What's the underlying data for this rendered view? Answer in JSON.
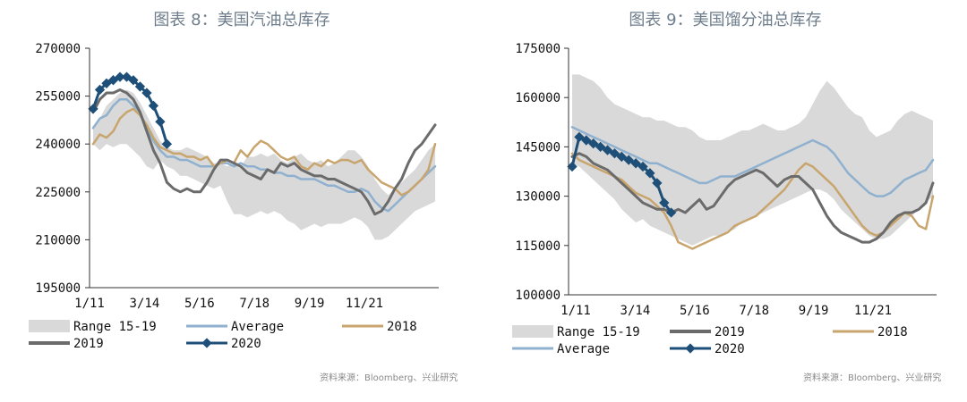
{
  "chart_data": [
    {
      "type": "line",
      "title": "图表 8：美国汽油总库存",
      "xlabel": "",
      "ylabel": "",
      "x_ticks": [
        "1/11",
        "3/14",
        "5/16",
        "7/18",
        "9/19",
        "11/21"
      ],
      "y_ticks": [
        "195000",
        "210000",
        "225000",
        "240000",
        "255000",
        "270000"
      ],
      "ylim": [
        195000,
        270000
      ],
      "weeks": 52,
      "grid": false,
      "legend_position": "bottom",
      "source": "资料来源：Bloomberg、兴业研究",
      "colors": {
        "range": "#d9d9d9",
        "average": "#8fb1cf",
        "y2018": "#c9a56e",
        "y2019": "#6b6b6b",
        "y2020": "#1e4f78"
      },
      "range": {
        "name": "Range 15-19",
        "low": [
          240000,
          238000,
          240000,
          239000,
          240000,
          240000,
          238000,
          236000,
          233000,
          232000,
          235000,
          233000,
          232000,
          230000,
          230000,
          229000,
          228000,
          227000,
          226000,
          227000,
          222000,
          218000,
          218000,
          217000,
          218000,
          219000,
          218000,
          219000,
          218000,
          216000,
          215000,
          213000,
          214000,
          215000,
          214000,
          215000,
          215000,
          215000,
          216000,
          217000,
          216000,
          214000,
          210000,
          210000,
          211000,
          213000,
          215000,
          217000,
          219000,
          220000,
          221000,
          222000
        ],
        "high": [
          245000,
          248000,
          252000,
          254000,
          256000,
          257000,
          256000,
          253000,
          249000,
          245000,
          241000,
          239000,
          238000,
          238000,
          239000,
          238000,
          237000,
          236000,
          234000,
          234000,
          233000,
          234000,
          233000,
          236000,
          236000,
          237000,
          236000,
          237000,
          235000,
          234000,
          236000,
          237000,
          235000,
          234000,
          235000,
          233000,
          234000,
          236000,
          238000,
          238000,
          236000,
          233000,
          229000,
          226000,
          224000,
          226000,
          228000,
          230000,
          232000,
          235000,
          238000,
          240000
        ]
      },
      "series": [
        {
          "name": "Average",
          "values": [
            245000,
            248000,
            249000,
            252000,
            254000,
            254000,
            252000,
            250000,
            245000,
            241000,
            238000,
            236000,
            236000,
            235000,
            235000,
            234000,
            233000,
            233000,
            233000,
            234000,
            234000,
            233000,
            234000,
            233000,
            233000,
            232000,
            232000,
            231000,
            231000,
            230000,
            230000,
            229000,
            229000,
            229000,
            228000,
            227000,
            227000,
            226000,
            225000,
            225000,
            226000,
            225000,
            222000,
            220000,
            219000,
            221000,
            223000,
            225000,
            227000,
            229000,
            231000,
            233000
          ]
        },
        {
          "name": "2018",
          "values": [
            240000,
            243000,
            242000,
            244000,
            248000,
            250000,
            251000,
            249000,
            246000,
            242000,
            239000,
            238000,
            237000,
            237000,
            236000,
            236000,
            235000,
            236000,
            233000,
            234000,
            235000,
            234000,
            238000,
            236000,
            239000,
            241000,
            240000,
            238000,
            236000,
            235000,
            236000,
            233000,
            232000,
            234000,
            233000,
            235000,
            234000,
            235000,
            235000,
            234000,
            235000,
            232000,
            230000,
            228000,
            227000,
            226000,
            224000,
            225000,
            227000,
            229000,
            232000,
            240000
          ]
        },
        {
          "name": "2019",
          "values": [
            250000,
            254000,
            256000,
            256000,
            257000,
            256000,
            254000,
            250000,
            244000,
            238000,
            234000,
            228000,
            226000,
            225000,
            226000,
            225000,
            225000,
            228000,
            232000,
            235000,
            235000,
            234000,
            233000,
            231000,
            230000,
            229000,
            232000,
            231000,
            234000,
            233000,
            234000,
            232000,
            231000,
            230000,
            230000,
            229000,
            229000,
            228000,
            227000,
            226000,
            225000,
            222000,
            218000,
            219000,
            222000,
            226000,
            229000,
            234000,
            238000,
            240000,
            243000,
            246000
          ]
        },
        {
          "name": "2020",
          "values": [
            251000,
            257000,
            259000,
            260000,
            261000,
            261000,
            260000,
            258000,
            256000,
            252000,
            247000,
            240000
          ]
        }
      ]
    },
    {
      "type": "line",
      "title": "图表 9：美国馏分油总库存",
      "xlabel": "",
      "ylabel": "",
      "x_ticks": [
        "1/11",
        "3/14",
        "5/16",
        "7/18",
        "9/19",
        "11/21"
      ],
      "y_ticks": [
        "100000",
        "115000",
        "130000",
        "145000",
        "160000",
        "175000"
      ],
      "ylim": [
        100000,
        175000
      ],
      "weeks": 52,
      "grid": false,
      "legend_position": "bottom",
      "source": "资料来源：Bloomberg、兴业研究",
      "colors": {
        "range": "#d9d9d9",
        "average": "#8fb1cf",
        "y2018": "#c9a56e",
        "y2019": "#6b6b6b",
        "y2020": "#1e4f78"
      },
      "range": {
        "name": "Range 15-19",
        "low": [
          140000,
          139000,
          137000,
          135000,
          133000,
          131000,
          129000,
          126000,
          124000,
          122000,
          123000,
          121000,
          120000,
          119000,
          118000,
          117000,
          116000,
          115000,
          116000,
          117000,
          118000,
          118000,
          119000,
          120000,
          122000,
          123000,
          124000,
          125000,
          126000,
          127000,
          128000,
          129000,
          130000,
          131000,
          132000,
          132000,
          131000,
          129000,
          126000,
          124000,
          122000,
          120000,
          118000,
          117000,
          117000,
          118000,
          120000,
          122000,
          124000,
          126000,
          128000,
          130000
        ],
        "high": [
          167000,
          167000,
          166000,
          165000,
          163000,
          160000,
          158000,
          157000,
          156000,
          155000,
          154000,
          154000,
          153000,
          153000,
          152000,
          151000,
          151000,
          150000,
          148000,
          147000,
          147000,
          147000,
          148000,
          149000,
          150000,
          150000,
          151000,
          152000,
          151000,
          150000,
          150000,
          151000,
          152000,
          154000,
          158000,
          162000,
          165000,
          163000,
          160000,
          157000,
          155000,
          154000,
          150000,
          148000,
          149000,
          150000,
          153000,
          155000,
          156000,
          155000,
          154000,
          153000
        ]
      },
      "series": [
        {
          "name": "Average",
          "values": [
            151000,
            150000,
            149000,
            148000,
            147000,
            146000,
            145000,
            144000,
            143000,
            142000,
            141000,
            140000,
            140000,
            139000,
            138000,
            137000,
            136000,
            135000,
            134000,
            134000,
            135000,
            136000,
            136000,
            136000,
            137000,
            138000,
            139000,
            140000,
            141000,
            142000,
            143000,
            144000,
            145000,
            146000,
            147000,
            146000,
            145000,
            143000,
            140000,
            137000,
            135000,
            133000,
            131000,
            130000,
            130000,
            131000,
            133000,
            135000,
            136000,
            137000,
            138000,
            141000
          ]
        },
        {
          "name": "2018",
          "values": [
            143000,
            141000,
            140000,
            139000,
            138000,
            137000,
            136000,
            135000,
            133000,
            131000,
            130000,
            129000,
            127000,
            125000,
            121000,
            116000,
            115000,
            114000,
            115000,
            116000,
            117000,
            118000,
            119000,
            121000,
            122000,
            123000,
            124000,
            126000,
            128000,
            130000,
            132000,
            135000,
            138000,
            140000,
            139000,
            137000,
            135000,
            133000,
            130000,
            127000,
            124000,
            121000,
            119000,
            118000,
            119000,
            121000,
            123000,
            125000,
            124000,
            121000,
            120000,
            130000
          ]
        },
        {
          "name": "2019",
          "values": [
            142000,
            143000,
            142000,
            140000,
            139000,
            138000,
            136000,
            134000,
            132000,
            130000,
            128000,
            127000,
            126000,
            126000,
            125000,
            126000,
            125000,
            127000,
            129000,
            126000,
            127000,
            130000,
            133000,
            135000,
            136000,
            137000,
            138000,
            137000,
            135000,
            133000,
            135000,
            136000,
            136000,
            134000,
            132000,
            128000,
            124000,
            121000,
            119000,
            118000,
            117000,
            116000,
            116000,
            117000,
            119000,
            122000,
            124000,
            125000,
            125000,
            126000,
            128000,
            134000
          ]
        },
        {
          "name": "2020",
          "values": [
            139000,
            148000,
            147000,
            146000,
            145000,
            144000,
            143000,
            142000,
            141000,
            140000,
            139000,
            137000,
            134000,
            128000,
            125000
          ]
        }
      ]
    }
  ]
}
